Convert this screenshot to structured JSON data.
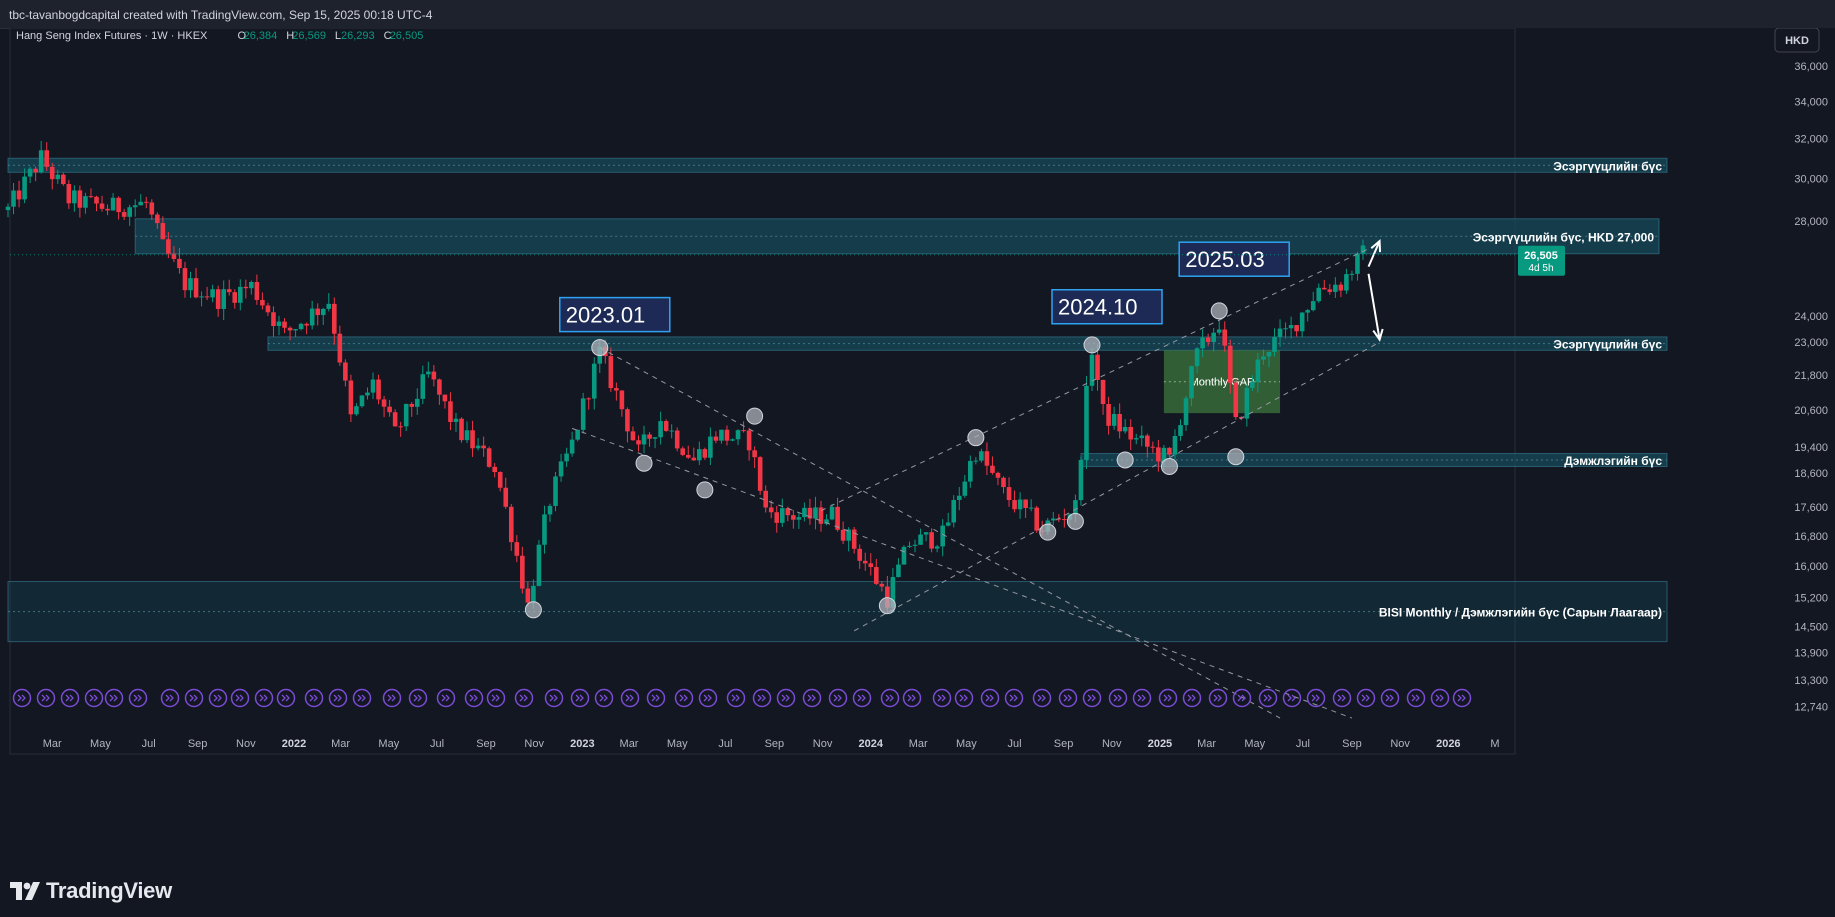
{
  "header": {
    "credit": "tbc-tavanbogdcapital created with TradingView.com, Sep 15, 2025 00:18 UTC-4"
  },
  "legend": {
    "symbol": "Hang Seng Index Futures · 1W · HKEX",
    "o_label": "O",
    "o": "26,384",
    "h_label": "H",
    "h": "26,569",
    "l_label": "L",
    "l": "26,293",
    "c_label": "C",
    "c": "26,505"
  },
  "currency_button": "HKD",
  "last_price": {
    "value": "26,505",
    "countdown": "4d 5h"
  },
  "brand": {
    "name": "TradingView"
  },
  "colors": {
    "up": "#089981",
    "down": "#f23645",
    "background": "#131722",
    "zone": "#15495a",
    "gap": "#3d7a3d",
    "event": "#7b4bd4"
  },
  "chart_data": {
    "type": "candlestick",
    "y_scale": "log",
    "ylim": [
      12300,
      37800
    ],
    "y_ticks": [
      "36,000",
      "34,000",
      "32,000",
      "30,000",
      "28,000",
      "24,000",
      "23,000",
      "21,800",
      "20,600",
      "19,400",
      "18,600",
      "17,600",
      "16,800",
      "16,000",
      "15,200",
      "14,500",
      "13,900",
      "13,300",
      "12,740"
    ],
    "x_ticks": [
      "Mar",
      "May",
      "Jul",
      "Sep",
      "Nov",
      "2022",
      "Mar",
      "May",
      "Jul",
      "Sep",
      "Nov",
      "2023",
      "Mar",
      "May",
      "Jul",
      "Sep",
      "Nov",
      "2024",
      "Mar",
      "May",
      "Jul",
      "Sep",
      "Nov",
      "2025",
      "Mar",
      "May",
      "Jul",
      "Sep",
      "Nov",
      "2026",
      "M"
    ],
    "anchors_close": [
      [
        "2021-01-04",
        28500
      ],
      [
        "2021-02-15",
        31000
      ],
      [
        "2021-03-22",
        29000
      ],
      [
        "2021-05-10",
        28600
      ],
      [
        "2021-06-28",
        28800
      ],
      [
        "2021-07-19",
        26800
      ],
      [
        "2021-08-16",
        25300
      ],
      [
        "2021-09-27",
        24700
      ],
      [
        "2021-11-08",
        25200
      ],
      [
        "2021-12-20",
        23300
      ],
      [
        "2022-02-14",
        24600
      ],
      [
        "2022-03-14",
        20300
      ],
      [
        "2022-04-11",
        21500
      ],
      [
        "2022-05-09",
        19800
      ],
      [
        "2022-06-20",
        21800
      ],
      [
        "2022-07-25",
        20000
      ],
      [
        "2022-09-12",
        18800
      ],
      [
        "2022-10-24",
        15000
      ],
      [
        "2022-11-21",
        17800
      ],
      [
        "2022-12-19",
        19500
      ],
      [
        "2023-01-23",
        22600
      ],
      [
        "2023-03-13",
        19200
      ],
      [
        "2023-04-10",
        20300
      ],
      [
        "2023-05-22",
        19000
      ],
      [
        "2023-06-19",
        19800
      ],
      [
        "2023-07-31",
        19600
      ],
      [
        "2023-08-21",
        17500
      ],
      [
        "2023-10-09",
        17300
      ],
      [
        "2023-11-13",
        17400
      ],
      [
        "2024-01-22",
        15200
      ],
      [
        "2024-02-19",
        16600
      ],
      [
        "2024-04-01",
        16800
      ],
      [
        "2024-05-13",
        19300
      ],
      [
        "2024-06-17",
        18000
      ],
      [
        "2024-08-05",
        17000
      ],
      [
        "2024-09-16",
        17600
      ],
      [
        "2024-10-07",
        22800
      ],
      [
        "2024-10-21",
        20500
      ],
      [
        "2024-12-02",
        19600
      ],
      [
        "2025-01-13",
        19000
      ],
      [
        "2025-02-17",
        22500
      ],
      [
        "2025-03-17",
        23800
      ],
      [
        "2025-04-07",
        20100
      ],
      [
        "2025-05-12",
        22700
      ],
      [
        "2025-06-16",
        23500
      ],
      [
        "2025-07-21",
        25100
      ],
      [
        "2025-08-18",
        25300
      ],
      [
        "2025-09-15",
        26505
      ]
    ],
    "ohlc_last": {
      "date": "2025-09-15",
      "open": 26384,
      "high": 26569,
      "low": 26293,
      "close": 26505
    },
    "zones": [
      {
        "label": "Эсэргүүцлийн бүс",
        "low": 30300,
        "high": 31000,
        "from": "2021-01-04"
      },
      {
        "label": "Эсэргүүцлийн бүс, HKD 27,000",
        "low": 26550,
        "high": 28100,
        "from": "2021-06-14"
      },
      {
        "label": "Эсэргүүцлийн бүс",
        "low": 22700,
        "high": 23200,
        "from": "2021-11-29"
      },
      {
        "label": "Дэмжлэгийн бүс",
        "low": 18800,
        "high": 19200,
        "from": "2024-09-23"
      },
      {
        "label": "BISI Monthly / Дэмжлэгийн бүс (Сарын Лаагаар)",
        "low": 14150,
        "high": 15600,
        "from": "2021-01-04"
      }
    ],
    "monthly_gap": {
      "label": "Monthly GAP",
      "from": "2025-01-06",
      "to": "2025-06-02",
      "low": 20500,
      "high": 22700
    },
    "date_boxes": [
      {
        "label": "2023.01",
        "date": "2023-01-23",
        "value": 23400
      },
      {
        "label": "2024.10",
        "date": "2024-10-07",
        "value": 23700
      },
      {
        "label": "2025.03",
        "date": "2025-03-17",
        "value": 25600
      }
    ],
    "pivots": [
      [
        "2022-10-31",
        14900
      ],
      [
        "2023-01-23",
        22800
      ],
      [
        "2023-03-20",
        18900
      ],
      [
        "2023-06-05",
        18100
      ],
      [
        "2023-08-07",
        20400
      ],
      [
        "2024-01-22",
        15000
      ],
      [
        "2024-05-13",
        19700
      ],
      [
        "2024-08-12",
        16900
      ],
      [
        "2024-09-16",
        17200
      ],
      [
        "2024-10-07",
        22900
      ],
      [
        "2024-11-18",
        19000
      ],
      [
        "2025-01-13",
        18800
      ],
      [
        "2025-03-17",
        24200
      ],
      [
        "2025-04-07",
        19100
      ]
    ],
    "trend_lines": [
      {
        "from": [
          "2023-01-23",
          22800
        ],
        "to": [
          "2025-06-02",
          12500
        ]
      },
      {
        "from": [
          "2022-12-19",
          20000
        ],
        "to": [
          "2025-09-01",
          12500
        ]
      },
      {
        "from": [
          "2023-12-11",
          14400
        ],
        "to": [
          "2025-10-06",
          23000
        ]
      },
      {
        "from": [
          "2023-10-30",
          17500
        ],
        "to": [
          "2025-10-06",
          27000
        ]
      }
    ],
    "projection": [
      [
        "2025-09-22",
        26000
      ],
      [
        "2025-10-06",
        27100
      ],
      [
        "2025-09-22",
        25700
      ],
      [
        "2025-10-06",
        23100
      ]
    ]
  }
}
